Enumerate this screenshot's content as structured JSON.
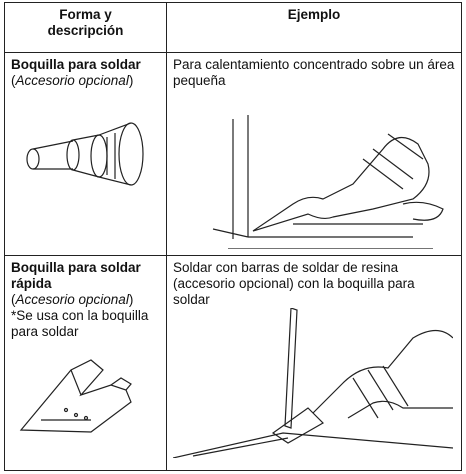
{
  "table": {
    "header": [
      "Forma y descripción",
      "Ejemplo"
    ],
    "rows": [
      {
        "name": "Boquilla para soldar",
        "accessory": {
          "open": "(",
          "text": "Accesorio opcional",
          "close": ")"
        },
        "example": "Para calentamiento concentrado sobre un área pequeña"
      },
      {
        "name": "Boquilla para soldar rápida",
        "accessory": {
          "open": "(",
          "text": "Accesorio opcional",
          "close": ")"
        },
        "note": "*Se usa con la boquilla para soldar",
        "example": "Soldar con barras de soldar de resina (accesorio opcional) con la boquilla para soldar"
      }
    ]
  }
}
